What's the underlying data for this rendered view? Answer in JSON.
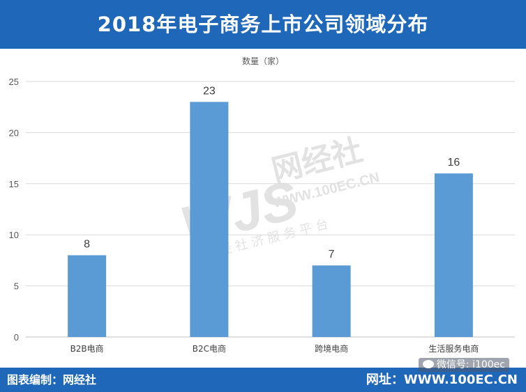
{
  "header": {
    "title": "2018年电子商务上市公司领域分布"
  },
  "footer": {
    "credit": "图表编制：网经社",
    "site": "网址：WWW.100EC.CN",
    "wechat": "微信号: i100ec"
  },
  "watermark": {
    "logo": "WJS",
    "name": "网经社",
    "url": "WWW.100EC.CN",
    "slogan": "网 经 社 济 服 务 平 台"
  },
  "colors": {
    "header_bg": "#1f67b8",
    "bar": "#5b9bd5",
    "grid": "#d9d9d9"
  },
  "chart_data": {
    "type": "bar",
    "ylabel": "数量（家）",
    "categories": [
      "B2B电商",
      "B2C电商",
      "跨境电商",
      "生活服务电商"
    ],
    "values": [
      8,
      23,
      7,
      16
    ],
    "ylim": [
      0,
      25
    ],
    "yticks": [
      0,
      5,
      10,
      15,
      20,
      25
    ],
    "grid": true,
    "data_labels": true
  }
}
